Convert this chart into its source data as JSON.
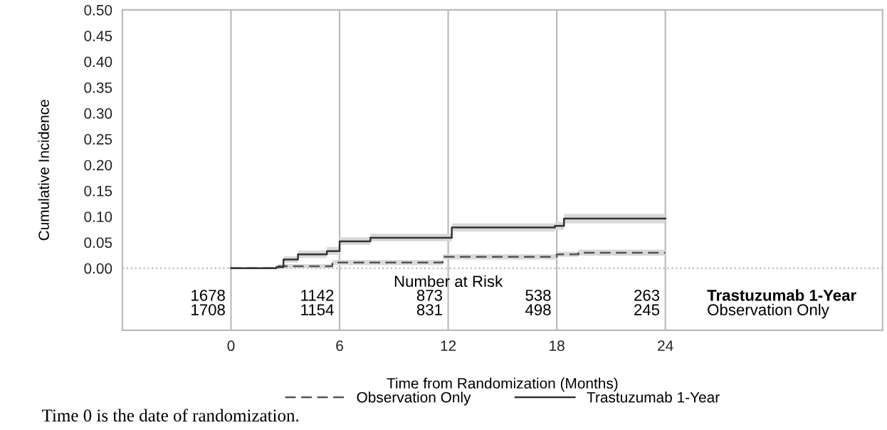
{
  "chart_data": {
    "type": "step",
    "xlabel": "Time from Randomization (Months)",
    "ylabel": "Cumulative Incidence",
    "xlim": [
      -6,
      36
    ],
    "xticks": [
      0,
      6,
      12,
      18,
      24
    ],
    "ylim": [
      -0.12,
      0.5
    ],
    "yticks": [
      {
        "value": 0,
        "label": "0.00"
      },
      {
        "value": 0.05,
        "label": "0.05"
      },
      {
        "value": 0.1,
        "label": "0.10"
      },
      {
        "value": 0.15,
        "label": "0.15"
      },
      {
        "value": 0.2,
        "label": "0.20"
      },
      {
        "value": 0.25,
        "label": "0.25"
      },
      {
        "value": 0.3,
        "label": "0.30"
      },
      {
        "value": 0.35,
        "label": "0.35"
      },
      {
        "value": 0.4,
        "label": "0.40"
      },
      {
        "value": 0.45,
        "label": "0.45"
      },
      {
        "value": 0.5,
        "label": "0.50"
      }
    ],
    "grid": "x",
    "legend": "bottom",
    "ref_lines": [
      {
        "axis": "y",
        "value": 0,
        "line_style": "dotted",
        "color": "#bbbbbb"
      }
    ],
    "series": [
      {
        "name": "Observation Only",
        "color": "#555555",
        "line_style": "dashed",
        "x": [
          0,
          2.6,
          5.6,
          11.7,
          18.0,
          19.2,
          24
        ],
        "values": [
          0,
          0.004,
          0.011,
          0.022,
          0.027,
          0.03,
          0.03
        ],
        "lower": [
          0,
          0,
          0.006,
          0.017,
          0.022,
          0.024,
          0.024
        ],
        "upper": [
          0,
          0.008,
          0.016,
          0.027,
          0.032,
          0.036,
          0.036
        ]
      },
      {
        "name": "Trastuzumab 1-Year",
        "color": "#333333",
        "line_style": "solid",
        "x": [
          0,
          2.5,
          2.9,
          3.7,
          5.3,
          6.0,
          7.7,
          11.5,
          12.2,
          17.9,
          18.4,
          24
        ],
        "values": [
          0,
          0.002,
          0.017,
          0.027,
          0.033,
          0.052,
          0.059,
          0.059,
          0.079,
          0.082,
          0.096,
          0.096
        ],
        "lower": [
          0,
          0,
          0.011,
          0.02,
          0.026,
          0.045,
          0.052,
          0.052,
          0.071,
          0.074,
          0.087,
          0.087
        ],
        "upper": [
          0,
          0.004,
          0.023,
          0.034,
          0.041,
          0.06,
          0.067,
          0.067,
          0.087,
          0.09,
          0.105,
          0.105
        ]
      }
    ],
    "annotations": [
      "Number at Risk",
      "1678",
      "1142",
      "873",
      "538",
      "263",
      "Trastuzumab 1-Year",
      "1708",
      "1154",
      "831",
      "498",
      "245",
      "Observation Only",
      "Time 0 is the date of randomization."
    ]
  }
}
